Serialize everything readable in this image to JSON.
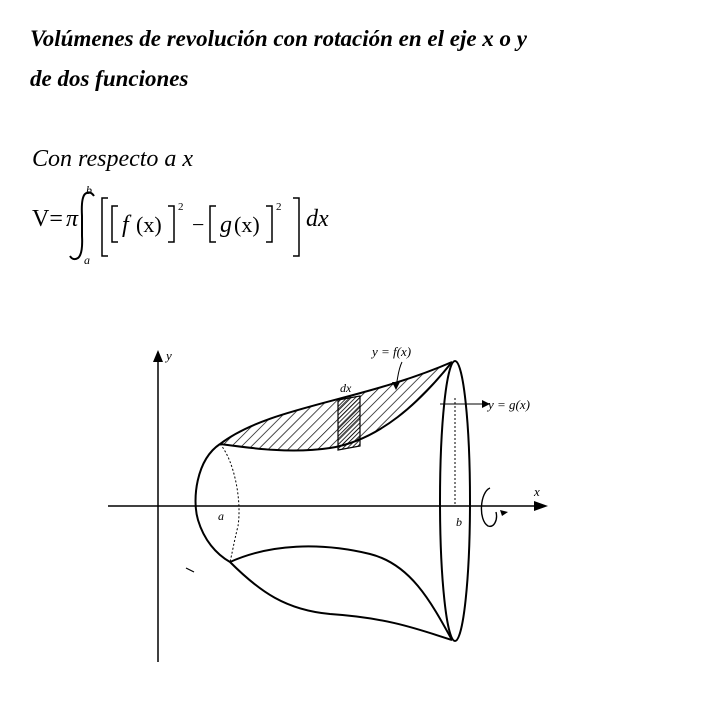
{
  "heading": {
    "line1": "Volúmenes de revolución con rotación en el eje x o y",
    "line2": "de dos funciones"
  },
  "subheading": "Con respecto a x",
  "formula": {
    "lhs": "V=",
    "pi": "π",
    "upper_limit": "b",
    "lower_limit": "a",
    "f_name": "f",
    "g_name": "g",
    "variable": "(x)",
    "exponent": "2",
    "minus": "−",
    "differential": "dx"
  },
  "figure": {
    "y_axis_label": "y",
    "x_axis_label": "x",
    "label_a": "a",
    "label_b": "b",
    "label_dx": "dx",
    "label_f": "y = f(x)",
    "label_g": "y = g(x)"
  }
}
